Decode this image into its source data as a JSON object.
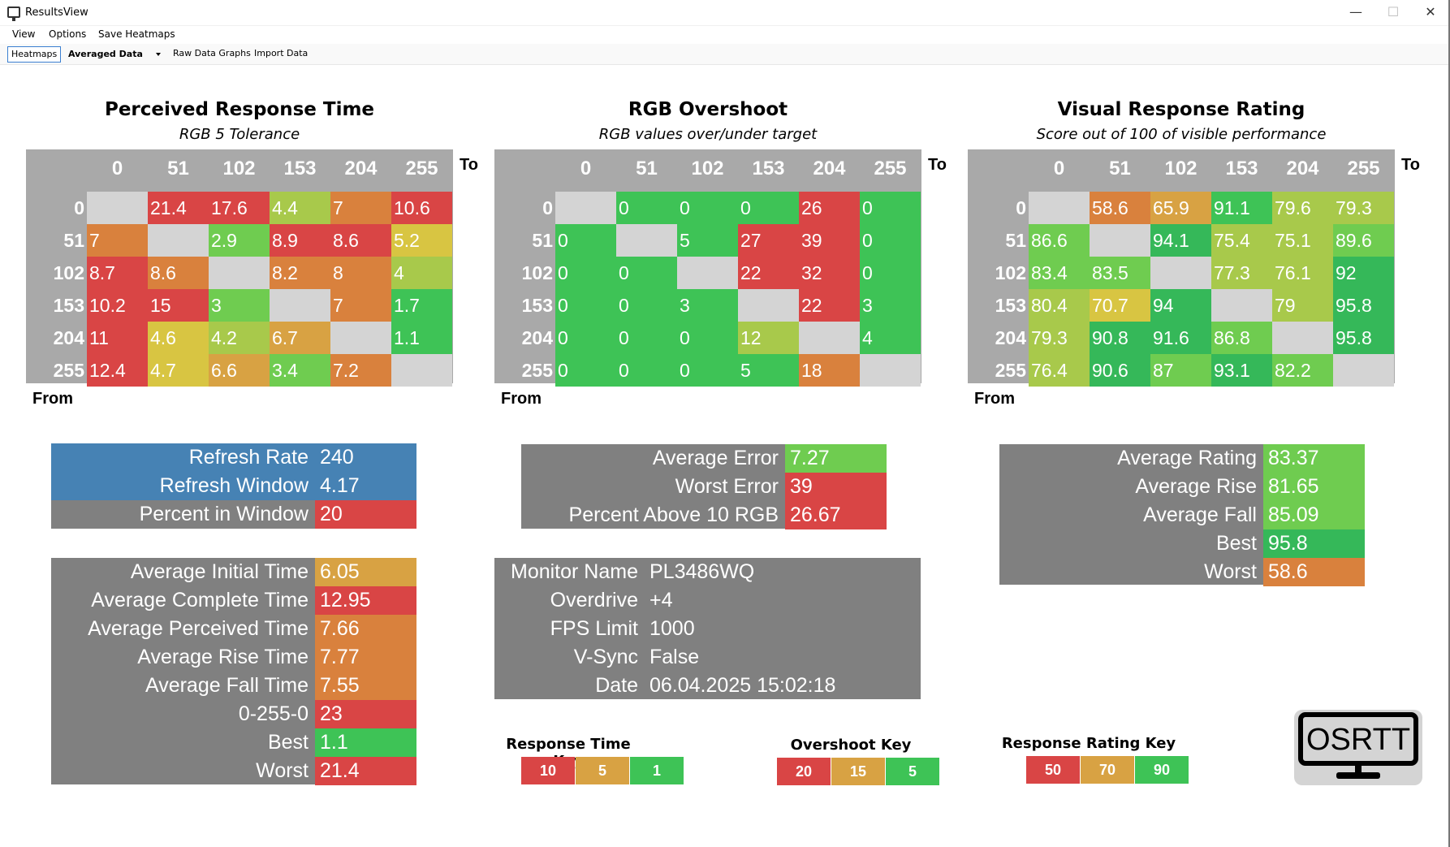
{
  "window": {
    "title": "ResultsView",
    "minimize": "—",
    "maximize": "☐",
    "close": "✕"
  },
  "menu": [
    "View",
    "Options",
    "Save Heatmaps"
  ],
  "toolbar": {
    "heatmaps": "Heatmaps",
    "dropdown": "Averaged Data",
    "raw": "Raw Data Graphs",
    "import": "Import Data"
  },
  "colors": {
    "red": "#d94545",
    "orange": "#d9813d",
    "amber": "#d8a243",
    "yellow": "#d8c542",
    "lime": "#a8c94b",
    "lightgreen": "#6fcc50",
    "green": "#3ec356",
    "deepgreen": "#35b859",
    "blank": "#d4d4d4",
    "grey": "#808080",
    "blue": "#4682b4",
    "heatmap_bg": "#a9a9a9"
  },
  "heatmaps": [
    {
      "title": "Perceived Response Time",
      "subtitle": "RGB 5 Tolerance",
      "to": "To",
      "from": "From",
      "levels": [
        "0",
        "51",
        "102",
        "153",
        "204",
        "255"
      ],
      "rows": [
        [
          [
            "",
            ""
          ],
          [
            "21.4",
            "red"
          ],
          [
            "17.6",
            "red"
          ],
          [
            "4.4",
            "lime"
          ],
          [
            "7",
            "orange"
          ],
          [
            "10.6",
            "red"
          ]
        ],
        [
          [
            "7",
            "orange"
          ],
          [
            "",
            ""
          ],
          [
            "2.9",
            "lightgreen"
          ],
          [
            "8.9",
            "red"
          ],
          [
            "8.6",
            "red"
          ],
          [
            "5.2",
            "yellow"
          ]
        ],
        [
          [
            "8.7",
            "red"
          ],
          [
            "8.6",
            "orange"
          ],
          [
            "",
            ""
          ],
          [
            "8.2",
            "orange"
          ],
          [
            "8",
            "orange"
          ],
          [
            "4",
            "lime"
          ]
        ],
        [
          [
            "10.2",
            "red"
          ],
          [
            "15",
            "red"
          ],
          [
            "3",
            "lightgreen"
          ],
          [
            "",
            ""
          ],
          [
            "7",
            "orange"
          ],
          [
            "1.7",
            "green"
          ]
        ],
        [
          [
            "11",
            "red"
          ],
          [
            "4.6",
            "yellow"
          ],
          [
            "4.2",
            "lime"
          ],
          [
            "6.7",
            "amber"
          ],
          [
            "",
            ""
          ],
          [
            "1.1",
            "green"
          ]
        ],
        [
          [
            "12.4",
            "red"
          ],
          [
            "4.7",
            "yellow"
          ],
          [
            "6.6",
            "amber"
          ],
          [
            "3.4",
            "lightgreen"
          ],
          [
            "7.2",
            "orange"
          ],
          [
            "",
            ""
          ]
        ]
      ]
    },
    {
      "title": "RGB Overshoot",
      "subtitle": "RGB values over/under target",
      "to": "To",
      "from": "From",
      "levels": [
        "0",
        "51",
        "102",
        "153",
        "204",
        "255"
      ],
      "rows": [
        [
          [
            "",
            ""
          ],
          [
            "0",
            "green"
          ],
          [
            "0",
            "green"
          ],
          [
            "0",
            "green"
          ],
          [
            "26",
            "red"
          ],
          [
            "0",
            "green"
          ]
        ],
        [
          [
            "0",
            "green"
          ],
          [
            "",
            ""
          ],
          [
            "5",
            "green"
          ],
          [
            "27",
            "red"
          ],
          [
            "39",
            "red"
          ],
          [
            "0",
            "green"
          ]
        ],
        [
          [
            "0",
            "green"
          ],
          [
            "0",
            "green"
          ],
          [
            "",
            ""
          ],
          [
            "22",
            "red"
          ],
          [
            "32",
            "red"
          ],
          [
            "0",
            "green"
          ]
        ],
        [
          [
            "0",
            "green"
          ],
          [
            "0",
            "green"
          ],
          [
            "3",
            "green"
          ],
          [
            "",
            ""
          ],
          [
            "22",
            "red"
          ],
          [
            "3",
            "green"
          ]
        ],
        [
          [
            "0",
            "green"
          ],
          [
            "0",
            "green"
          ],
          [
            "0",
            "green"
          ],
          [
            "12",
            "lime"
          ],
          [
            "",
            ""
          ],
          [
            "4",
            "green"
          ]
        ],
        [
          [
            "0",
            "green"
          ],
          [
            "0",
            "green"
          ],
          [
            "0",
            "green"
          ],
          [
            "5",
            "green"
          ],
          [
            "18",
            "orange"
          ],
          [
            "",
            ""
          ]
        ]
      ]
    },
    {
      "title": "Visual Response Rating",
      "subtitle": "Score out of 100 of visible performance",
      "to": "To",
      "from": "From",
      "levels": [
        "0",
        "51",
        "102",
        "153",
        "204",
        "255"
      ],
      "rows": [
        [
          [
            "",
            ""
          ],
          [
            "58.6",
            "orange"
          ],
          [
            "65.9",
            "amber"
          ],
          [
            "91.1",
            "green"
          ],
          [
            "79.6",
            "lime"
          ],
          [
            "79.3",
            "lime"
          ]
        ],
        [
          [
            "86.6",
            "lightgreen"
          ],
          [
            "",
            ""
          ],
          [
            "94.1",
            "deepgreen"
          ],
          [
            "75.4",
            "lime"
          ],
          [
            "75.1",
            "lime"
          ],
          [
            "89.6",
            "lightgreen"
          ]
        ],
        [
          [
            "83.4",
            "lightgreen"
          ],
          [
            "83.5",
            "lightgreen"
          ],
          [
            "",
            ""
          ],
          [
            "77.3",
            "lime"
          ],
          [
            "76.1",
            "lime"
          ],
          [
            "92",
            "deepgreen"
          ]
        ],
        [
          [
            "80.4",
            "lime"
          ],
          [
            "70.7",
            "yellow"
          ],
          [
            "94",
            "deepgreen"
          ],
          [
            "",
            ""
          ],
          [
            "79",
            "lime"
          ],
          [
            "95.8",
            "deepgreen"
          ]
        ],
        [
          [
            "79.3",
            "lime"
          ],
          [
            "90.8",
            "deepgreen"
          ],
          [
            "91.6",
            "deepgreen"
          ],
          [
            "86.8",
            "lightgreen"
          ],
          [
            "",
            ""
          ],
          [
            "95.8",
            "deepgreen"
          ]
        ],
        [
          [
            "76.4",
            "lime"
          ],
          [
            "90.6",
            "deepgreen"
          ],
          [
            "87",
            "lightgreen"
          ],
          [
            "93.1",
            "deepgreen"
          ],
          [
            "82.2",
            "lightgreen"
          ],
          [
            "",
            ""
          ]
        ]
      ]
    }
  ],
  "refresh": [
    [
      "Refresh Rate",
      "240",
      "blue",
      "blue"
    ],
    [
      "Refresh Window",
      "4.17",
      "blue",
      "blue"
    ],
    [
      "Percent in Window",
      "20",
      "grey",
      "red"
    ]
  ],
  "response_stats": [
    [
      "Average Initial Time",
      "6.05",
      "amber"
    ],
    [
      "Average Complete Time",
      "12.95",
      "red"
    ],
    [
      "Average Perceived Time",
      "7.66",
      "orange"
    ],
    [
      "Average Rise Time",
      "7.77",
      "orange"
    ],
    [
      "Average Fall Time",
      "7.55",
      "orange"
    ],
    [
      "0-255-0",
      "23",
      "red"
    ],
    [
      "Best",
      "1.1",
      "green"
    ],
    [
      "Worst",
      "21.4",
      "red"
    ]
  ],
  "overshoot_stats": [
    [
      "Average Error",
      "7.27",
      "lightgreen"
    ],
    [
      "Worst Error",
      "39",
      "red"
    ],
    [
      "Percent Above 10 RGB",
      "26.67",
      "red"
    ]
  ],
  "monitor_info": [
    [
      "Monitor Name",
      "PL3486WQ"
    ],
    [
      "Overdrive",
      "+4"
    ],
    [
      "FPS Limit",
      "1000"
    ],
    [
      "V-Sync",
      "False"
    ],
    [
      "Date",
      "06.04.2025 15:02:18"
    ]
  ],
  "rating_stats": [
    [
      "Average Rating",
      "83.37",
      "lightgreen"
    ],
    [
      "Average Rise",
      "81.65",
      "lightgreen"
    ],
    [
      "Average Fall",
      "85.09",
      "lightgreen"
    ],
    [
      "Best",
      "95.8",
      "deepgreen"
    ],
    [
      "Worst",
      "58.6",
      "orange"
    ]
  ],
  "keys": [
    {
      "title": "Response Time Key",
      "values": [
        [
          "10",
          "red"
        ],
        [
          "5",
          "amber"
        ],
        [
          "1",
          "green"
        ]
      ]
    },
    {
      "title": "Overshoot Key",
      "values": [
        [
          "20",
          "red"
        ],
        [
          "15",
          "amber"
        ],
        [
          "5",
          "green"
        ]
      ]
    },
    {
      "title": "Response Rating Key",
      "values": [
        [
          "50",
          "red"
        ],
        [
          "70",
          "amber"
        ],
        [
          "90",
          "green"
        ]
      ]
    }
  ],
  "logo": {
    "text": "OSRTT",
    "icon": "monitor-logo-icon"
  }
}
